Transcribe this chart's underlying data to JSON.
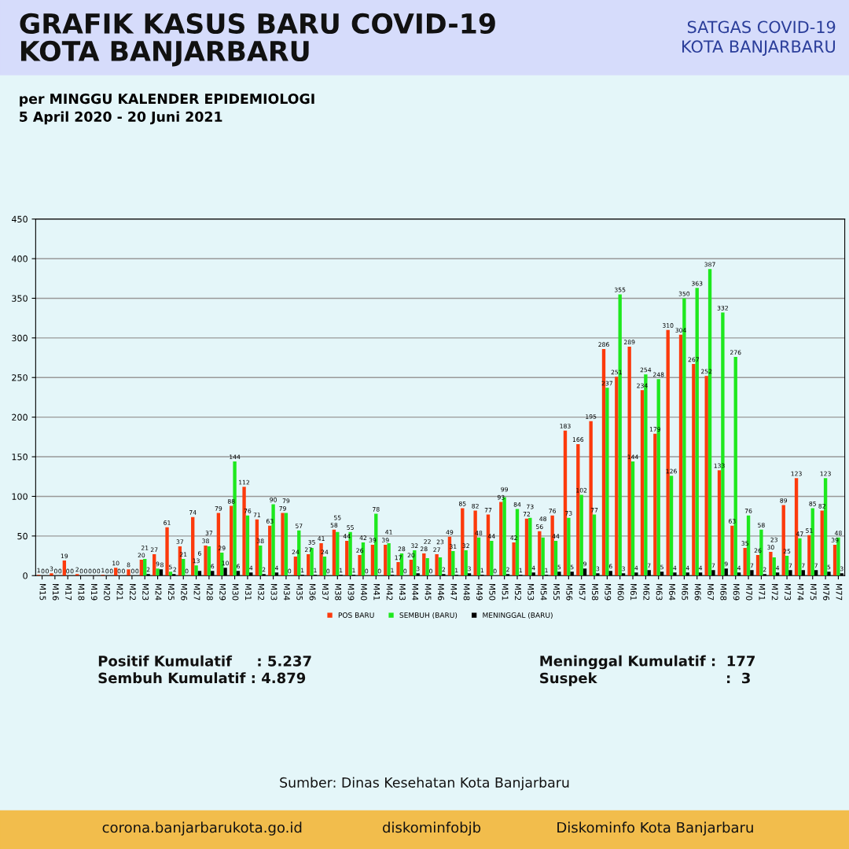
{
  "chart_data": {
    "type": "bar",
    "title": "GRAFIK KASUS BARU COVID-19\nKOTA BANJARBARU",
    "subtitle": "per MINGGU KALENDER EPIDEMIOLOGI\n5 April 2020 - 20 Juni 2021",
    "categories": [
      "M15",
      "M16",
      "M17",
      "M18",
      "M19",
      "M20",
      "M21",
      "M22",
      "M23",
      "M24",
      "M25",
      "M26",
      "M27",
      "M28",
      "M29",
      "M30",
      "M31",
      "M32",
      "M33",
      "M34",
      "M35",
      "M36",
      "M37",
      "M38",
      "M39",
      "M40",
      "M41",
      "M42",
      "M43",
      "M44",
      "M45",
      "M46",
      "M47",
      "M48",
      "M49",
      "M50",
      "M51",
      "M52",
      "M53",
      "M54",
      "M55",
      "M56",
      "M57",
      "M58",
      "M59",
      "M60",
      "M61",
      "M62",
      "M63",
      "M64",
      "M65",
      "M66",
      "M67",
      "M68",
      "M69",
      "M70",
      "M71",
      "M72",
      "M73",
      "M74",
      "M75",
      "M76",
      "M77"
    ],
    "series": [
      {
        "name": "POS BARU",
        "color": "#fc3a0c",
        "values": [
          1,
          3,
          19,
          2,
          0,
          1,
          10,
          8,
          20,
          27,
          61,
          37,
          74,
          38,
          79,
          88,
          112,
          71,
          63,
          79,
          24,
          27,
          41,
          58,
          44,
          26,
          39,
          39,
          17,
          20,
          28,
          27,
          49,
          85,
          82,
          77,
          93,
          42,
          72,
          56,
          76,
          183,
          166,
          195,
          286,
          251,
          289,
          234,
          179,
          310,
          304,
          267,
          252,
          133,
          63,
          35,
          26,
          30,
          89,
          123,
          51,
          82,
          39
        ]
      },
      {
        "name": "SEMBUH (BARU)",
        "color": "#1ee81e",
        "values": [
          0,
          0,
          0,
          0,
          0,
          0,
          0,
          0,
          21,
          9,
          5,
          21,
          13,
          37,
          29,
          144,
          76,
          38,
          90,
          79,
          57,
          35,
          24,
          55,
          55,
          42,
          78,
          41,
          28,
          32,
          22,
          23,
          31,
          32,
          48,
          44,
          99,
          84,
          73,
          48,
          44,
          73,
          102,
          77,
          237,
          355,
          144,
          254,
          248,
          126,
          350,
          363,
          387,
          332,
          276,
          76,
          58,
          23,
          25,
          47,
          85,
          123,
          48
        ]
      },
      {
        "name": "MENINGGAL (BARU)",
        "color": "#000000",
        "values": [
          0,
          0,
          0,
          0,
          0,
          0,
          0,
          0,
          2,
          8,
          2,
          0,
          6,
          6,
          10,
          6,
          4,
          2,
          4,
          0,
          1,
          1,
          0,
          1,
          1,
          0,
          0,
          1,
          0,
          3,
          0,
          2,
          1,
          3,
          1,
          0,
          2,
          1,
          4,
          1,
          5,
          5,
          9,
          3,
          6,
          3,
          4,
          7,
          5,
          4,
          4,
          4,
          7,
          9,
          4,
          7,
          2,
          4,
          7,
          7,
          7,
          5,
          3
        ]
      }
    ],
    "ylim": [
      0,
      450
    ],
    "yticks": [
      0,
      50,
      100,
      150,
      200,
      250,
      300,
      350,
      400,
      450
    ],
    "grid": "y",
    "legend": "bottom",
    "data_labels": true,
    "annotations": [
      "SATGAS COVID-19\nKOTA BANJARBARU",
      "Positif Kumulatif     : 5.237\nSembuh Kumulatif : 4.879",
      "Meninggal Kumulatif :  177\nSuspek                          :  3",
      "Sumber: Dinas Kesehatan Kota Banjarbaru",
      "corona.banjarbarukota.go.id",
      "diskominfobjb",
      "Diskominfo Kota Banjarbaru"
    ]
  }
}
